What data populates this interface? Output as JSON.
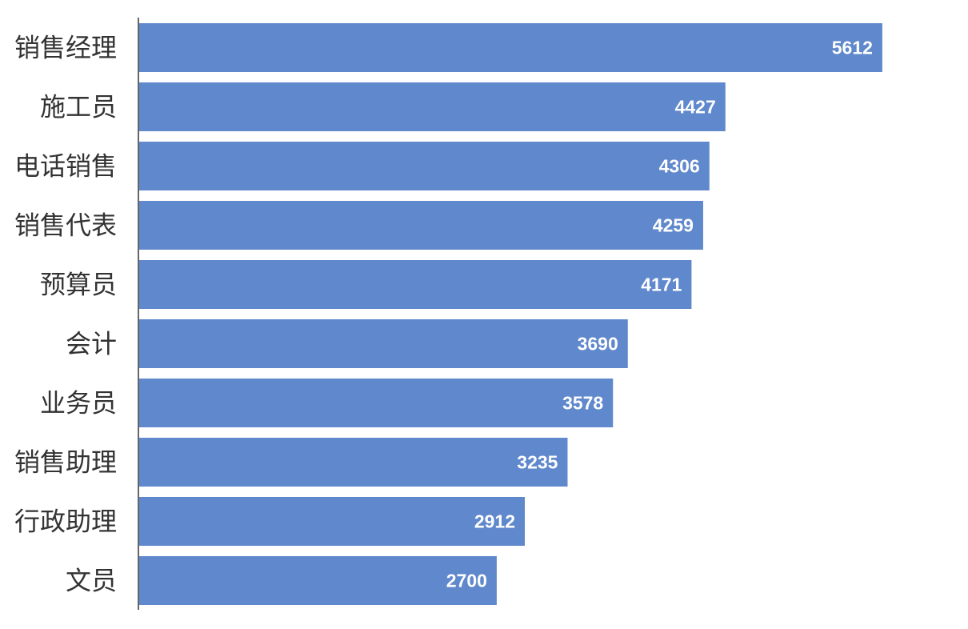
{
  "chart_data": {
    "type": "bar",
    "orientation": "horizontal",
    "categories": [
      "销售经理",
      "施工员",
      "电话销售",
      "销售代表",
      "预算员",
      "会计",
      "业务员",
      "销售助理",
      "行政助理",
      "文员"
    ],
    "values": [
      5612,
      4427,
      4306,
      4259,
      4171,
      3690,
      3578,
      3235,
      2912,
      2700
    ],
    "title": "",
    "xlabel": "",
    "ylabel": "",
    "xlim": [
      0,
      6120
    ],
    "grid": false,
    "legend": "none",
    "bar_color": "#6088cc",
    "axis_color": "#666666",
    "label_color": "#333333",
    "value_label_color": "#ffffff"
  }
}
